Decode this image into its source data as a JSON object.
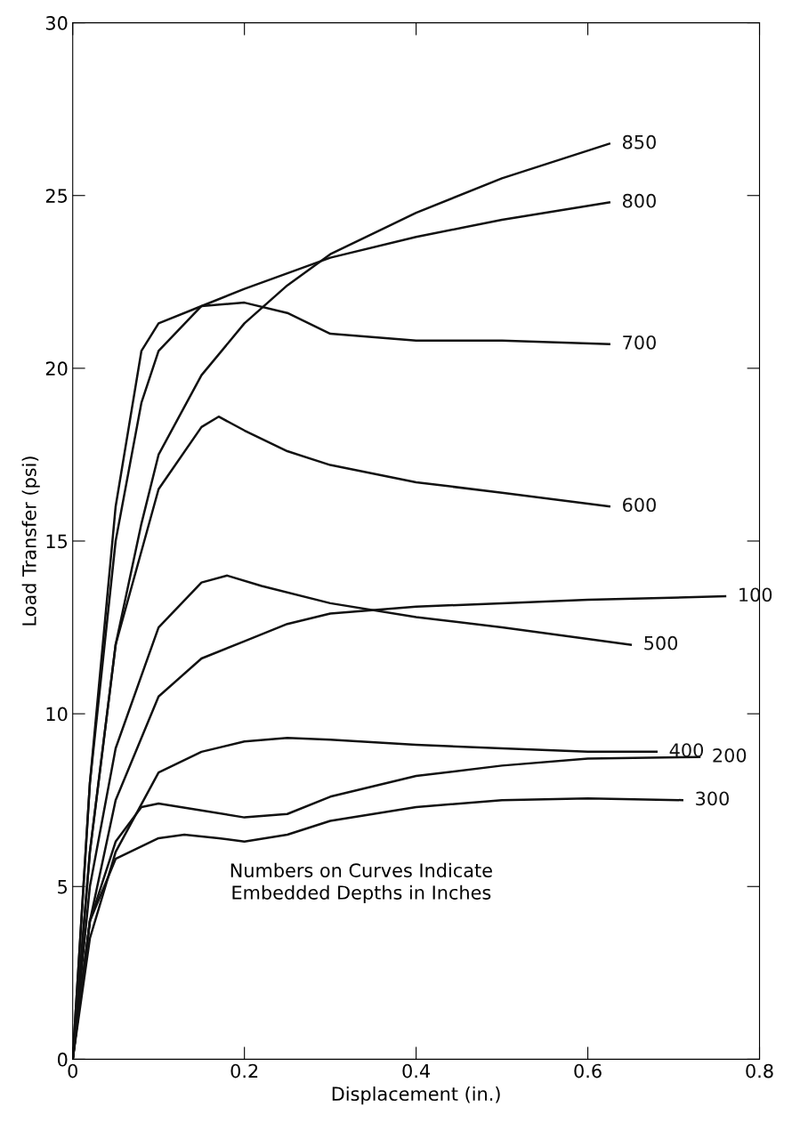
{
  "chart_data": {
    "type": "line",
    "xlabel": "Displacement (in.)",
    "ylabel": "Load Transfer (psi)",
    "xlim": [
      0,
      0.8
    ],
    "ylim": [
      0,
      30
    ],
    "xticks": [
      {
        "value": 0,
        "label": "0"
      },
      0.2,
      0.4,
      0.6,
      0.8
    ],
    "yticks": [
      0,
      5,
      10,
      15,
      20,
      25,
      30
    ],
    "grid": false,
    "legend": false,
    "marker": "none",
    "line_style": "solid",
    "annotations": [
      "Numbers on Curves Indicate\nEmbedded Depths in Inches"
    ],
    "series": [
      {
        "name": "850",
        "color": "#111111",
        "x": [
          0,
          0.02,
          0.05,
          0.08,
          0.1,
          0.15,
          0.2,
          0.25,
          0.3,
          0.4,
          0.5,
          0.625
        ],
        "values": [
          0,
          6,
          12,
          15.5,
          17.5,
          19.8,
          21.3,
          22.4,
          23.3,
          24.5,
          25.5,
          26.5
        ]
      },
      {
        "name": "800",
        "color": "#111111",
        "x": [
          0,
          0.02,
          0.05,
          0.08,
          0.1,
          0.15,
          0.2,
          0.3,
          0.4,
          0.5,
          0.625
        ],
        "values": [
          0,
          8,
          15,
          19,
          20.5,
          21.8,
          22.3,
          23.2,
          23.8,
          24.3,
          24.8
        ]
      },
      {
        "name": "700",
        "color": "#111111",
        "x": [
          0,
          0.02,
          0.05,
          0.08,
          0.1,
          0.15,
          0.2,
          0.25,
          0.3,
          0.4,
          0.5,
          0.625
        ],
        "values": [
          0,
          8,
          16,
          20.5,
          21.3,
          21.8,
          21.9,
          21.6,
          21,
          20.8,
          20.8,
          20.7
        ]
      },
      {
        "name": "600",
        "color": "#111111",
        "x": [
          0,
          0.02,
          0.05,
          0.1,
          0.15,
          0.17,
          0.2,
          0.25,
          0.3,
          0.4,
          0.5,
          0.625
        ],
        "values": [
          0,
          6,
          12,
          16.5,
          18.3,
          18.6,
          18.2,
          17.6,
          17.2,
          16.7,
          16.4,
          16.0
        ]
      },
      {
        "name": "500",
        "color": "#111111",
        "x": [
          0,
          0.02,
          0.05,
          0.1,
          0.15,
          0.18,
          0.22,
          0.3,
          0.4,
          0.5,
          0.65
        ],
        "values": [
          0,
          5,
          9,
          12.5,
          13.8,
          14,
          13.7,
          13.2,
          12.8,
          12.5,
          12.0
        ]
      },
      {
        "name": "100",
        "color": "#111111",
        "x": [
          0,
          0.02,
          0.05,
          0.1,
          0.15,
          0.2,
          0.25,
          0.3,
          0.4,
          0.5,
          0.6,
          0.76
        ],
        "values": [
          0,
          4,
          7.5,
          10.5,
          11.6,
          12.1,
          12.6,
          12.9,
          13.1,
          13.2,
          13.3,
          13.4
        ]
      },
      {
        "name": "400",
        "color": "#111111",
        "x": [
          0,
          0.02,
          0.05,
          0.1,
          0.15,
          0.2,
          0.25,
          0.3,
          0.4,
          0.5,
          0.6,
          0.68
        ],
        "values": [
          0,
          3.5,
          6,
          8.3,
          8.9,
          9.2,
          9.3,
          9.25,
          9.1,
          9.0,
          8.9,
          8.9
        ]
      },
      {
        "name": "200",
        "color": "#111111",
        "x": [
          0,
          0.02,
          0.05,
          0.08,
          0.1,
          0.15,
          0.2,
          0.25,
          0.3,
          0.4,
          0.5,
          0.6,
          0.73
        ],
        "values": [
          0,
          4,
          6.3,
          7.3,
          7.4,
          7.2,
          7.0,
          7.1,
          7.6,
          8.2,
          8.5,
          8.7,
          8.75
        ]
      },
      {
        "name": "300",
        "color": "#111111",
        "x": [
          0,
          0.02,
          0.05,
          0.1,
          0.13,
          0.17,
          0.2,
          0.25,
          0.3,
          0.4,
          0.5,
          0.6,
          0.71
        ],
        "values": [
          0,
          4,
          5.8,
          6.4,
          6.5,
          6.4,
          6.3,
          6.5,
          6.9,
          7.3,
          7.5,
          7.55,
          7.5
        ]
      }
    ]
  }
}
